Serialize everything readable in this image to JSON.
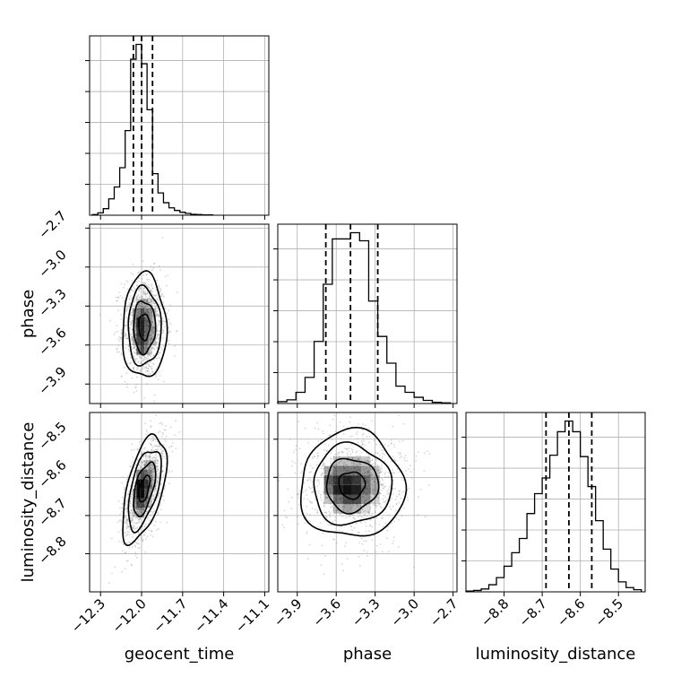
{
  "chart_data": {
    "type": "corner",
    "parameters": [
      "geocent_time",
      "phase",
      "luminosity_distance"
    ],
    "axis_labels": {
      "geocent_time": "geocent_time",
      "phase": "phase",
      "luminosity_distance": "luminosity_distance"
    },
    "ranges": {
      "geocent_time": [
        -12.38,
        -11.07
      ],
      "phase": [
        -4.05,
        -2.67
      ],
      "luminosity_distance": [
        -8.9,
        -8.43
      ]
    },
    "ticks": {
      "geocent_time": [
        {
          "v": -12.3,
          "label": "−12.3"
        },
        {
          "v": -12.0,
          "label": "−12.0"
        },
        {
          "v": -11.7,
          "label": "−11.7"
        },
        {
          "v": -11.4,
          "label": "−11.4"
        },
        {
          "v": -11.1,
          "label": "−11.1"
        }
      ],
      "phase": [
        {
          "v": -3.9,
          "label": "−3.9"
        },
        {
          "v": -3.6,
          "label": "−3.6"
        },
        {
          "v": -3.3,
          "label": "−3.3"
        },
        {
          "v": -3.0,
          "label": "−3.0"
        },
        {
          "v": -2.7,
          "label": "−2.7"
        }
      ],
      "luminosity_distance": [
        {
          "v": -8.8,
          "label": "−8.8"
        },
        {
          "v": -8.7,
          "label": "−8.7"
        },
        {
          "v": -8.6,
          "label": "−8.6"
        },
        {
          "v": -8.5,
          "label": "−8.5"
        }
      ]
    },
    "quantiles": {
      "geocent_time": [
        -12.06,
        -12.0,
        -11.92
      ],
      "phase": [
        -3.68,
        -3.49,
        -3.28
      ],
      "luminosity_distance": [
        -8.69,
        -8.63,
        -8.57
      ]
    },
    "histograms": {
      "geocent_time": {
        "edges": [
          -12.36,
          -12.32,
          -12.28,
          -12.24,
          -12.2,
          -12.16,
          -12.12,
          -12.08,
          -12.04,
          -12.0,
          -11.96,
          -11.92,
          -11.88,
          -11.84,
          -11.8,
          -11.76,
          -11.72,
          -11.68,
          -11.64,
          -11.6,
          -11.56,
          -11.52,
          -11.48
        ],
        "counts": [
          2,
          8,
          22,
          55,
          95,
          160,
          285,
          525,
          575,
          510,
          355,
          140,
          75,
          42,
          25,
          16,
          10,
          6,
          3,
          2,
          1,
          1
        ]
      },
      "phase": {
        "edges": [
          -4.05,
          -3.98,
          -3.91,
          -3.84,
          -3.77,
          -3.7,
          -3.63,
          -3.56,
          -3.49,
          -3.42,
          -3.35,
          -3.28,
          -3.21,
          -3.14,
          -3.07,
          -3.0,
          -2.93,
          -2.86,
          -2.79,
          -2.72
        ],
        "counts": [
          3,
          6,
          18,
          42,
          100,
          192,
          265,
          265,
          275,
          262,
          165,
          108,
          65,
          28,
          18,
          10,
          5,
          2,
          1
        ]
      },
      "luminosity_distance": {
        "edges": [
          -8.9,
          -8.88,
          -8.86,
          -8.84,
          -8.82,
          -8.8,
          -8.78,
          -8.76,
          -8.74,
          -8.72,
          -8.7,
          -8.68,
          -8.66,
          -8.64,
          -8.62,
          -8.6,
          -8.58,
          -8.56,
          -8.54,
          -8.52,
          -8.5,
          -8.48,
          -8.46,
          -8.44
        ],
        "counts": [
          1,
          2,
          4,
          10,
          20,
          36,
          55,
          75,
          110,
          138,
          160,
          192,
          225,
          240,
          225,
          190,
          148,
          100,
          60,
          32,
          14,
          6,
          3
        ]
      }
    },
    "joint": {
      "phase_vs_geocent_time": {
        "mean": [
          -11.98,
          -3.46
        ],
        "sd": [
          0.08,
          0.2
        ],
        "rho": 0.0,
        "density_peaks": [
          [
            -12.01,
            -3.42
          ],
          [
            -12.01,
            -3.62
          ]
        ]
      },
      "luminosity_distance_vs_geocent_time": {
        "mean": [
          -11.98,
          -8.63
        ],
        "sd": [
          0.08,
          0.07
        ],
        "rho": 0.55,
        "density_peaks": [
          [
            -12.01,
            -8.62
          ],
          [
            -12.01,
            -8.635
          ]
        ]
      },
      "luminosity_distance_vs_phase": {
        "mean": [
          -3.48,
          -8.62
        ],
        "sd": [
          0.2,
          0.07
        ],
        "rho": 0.0,
        "density_peaks": [
          [
            -3.62,
            -8.62
          ],
          [
            -3.47,
            -8.63
          ]
        ]
      }
    },
    "contour_levels_sigma": [
      0.5,
      1.0,
      1.5,
      2.0
    ],
    "grid": true,
    "colors": {
      "line": "#000000",
      "grid": "#b0b0b0",
      "points": "#8c8c8c",
      "density": "#000000"
    }
  }
}
